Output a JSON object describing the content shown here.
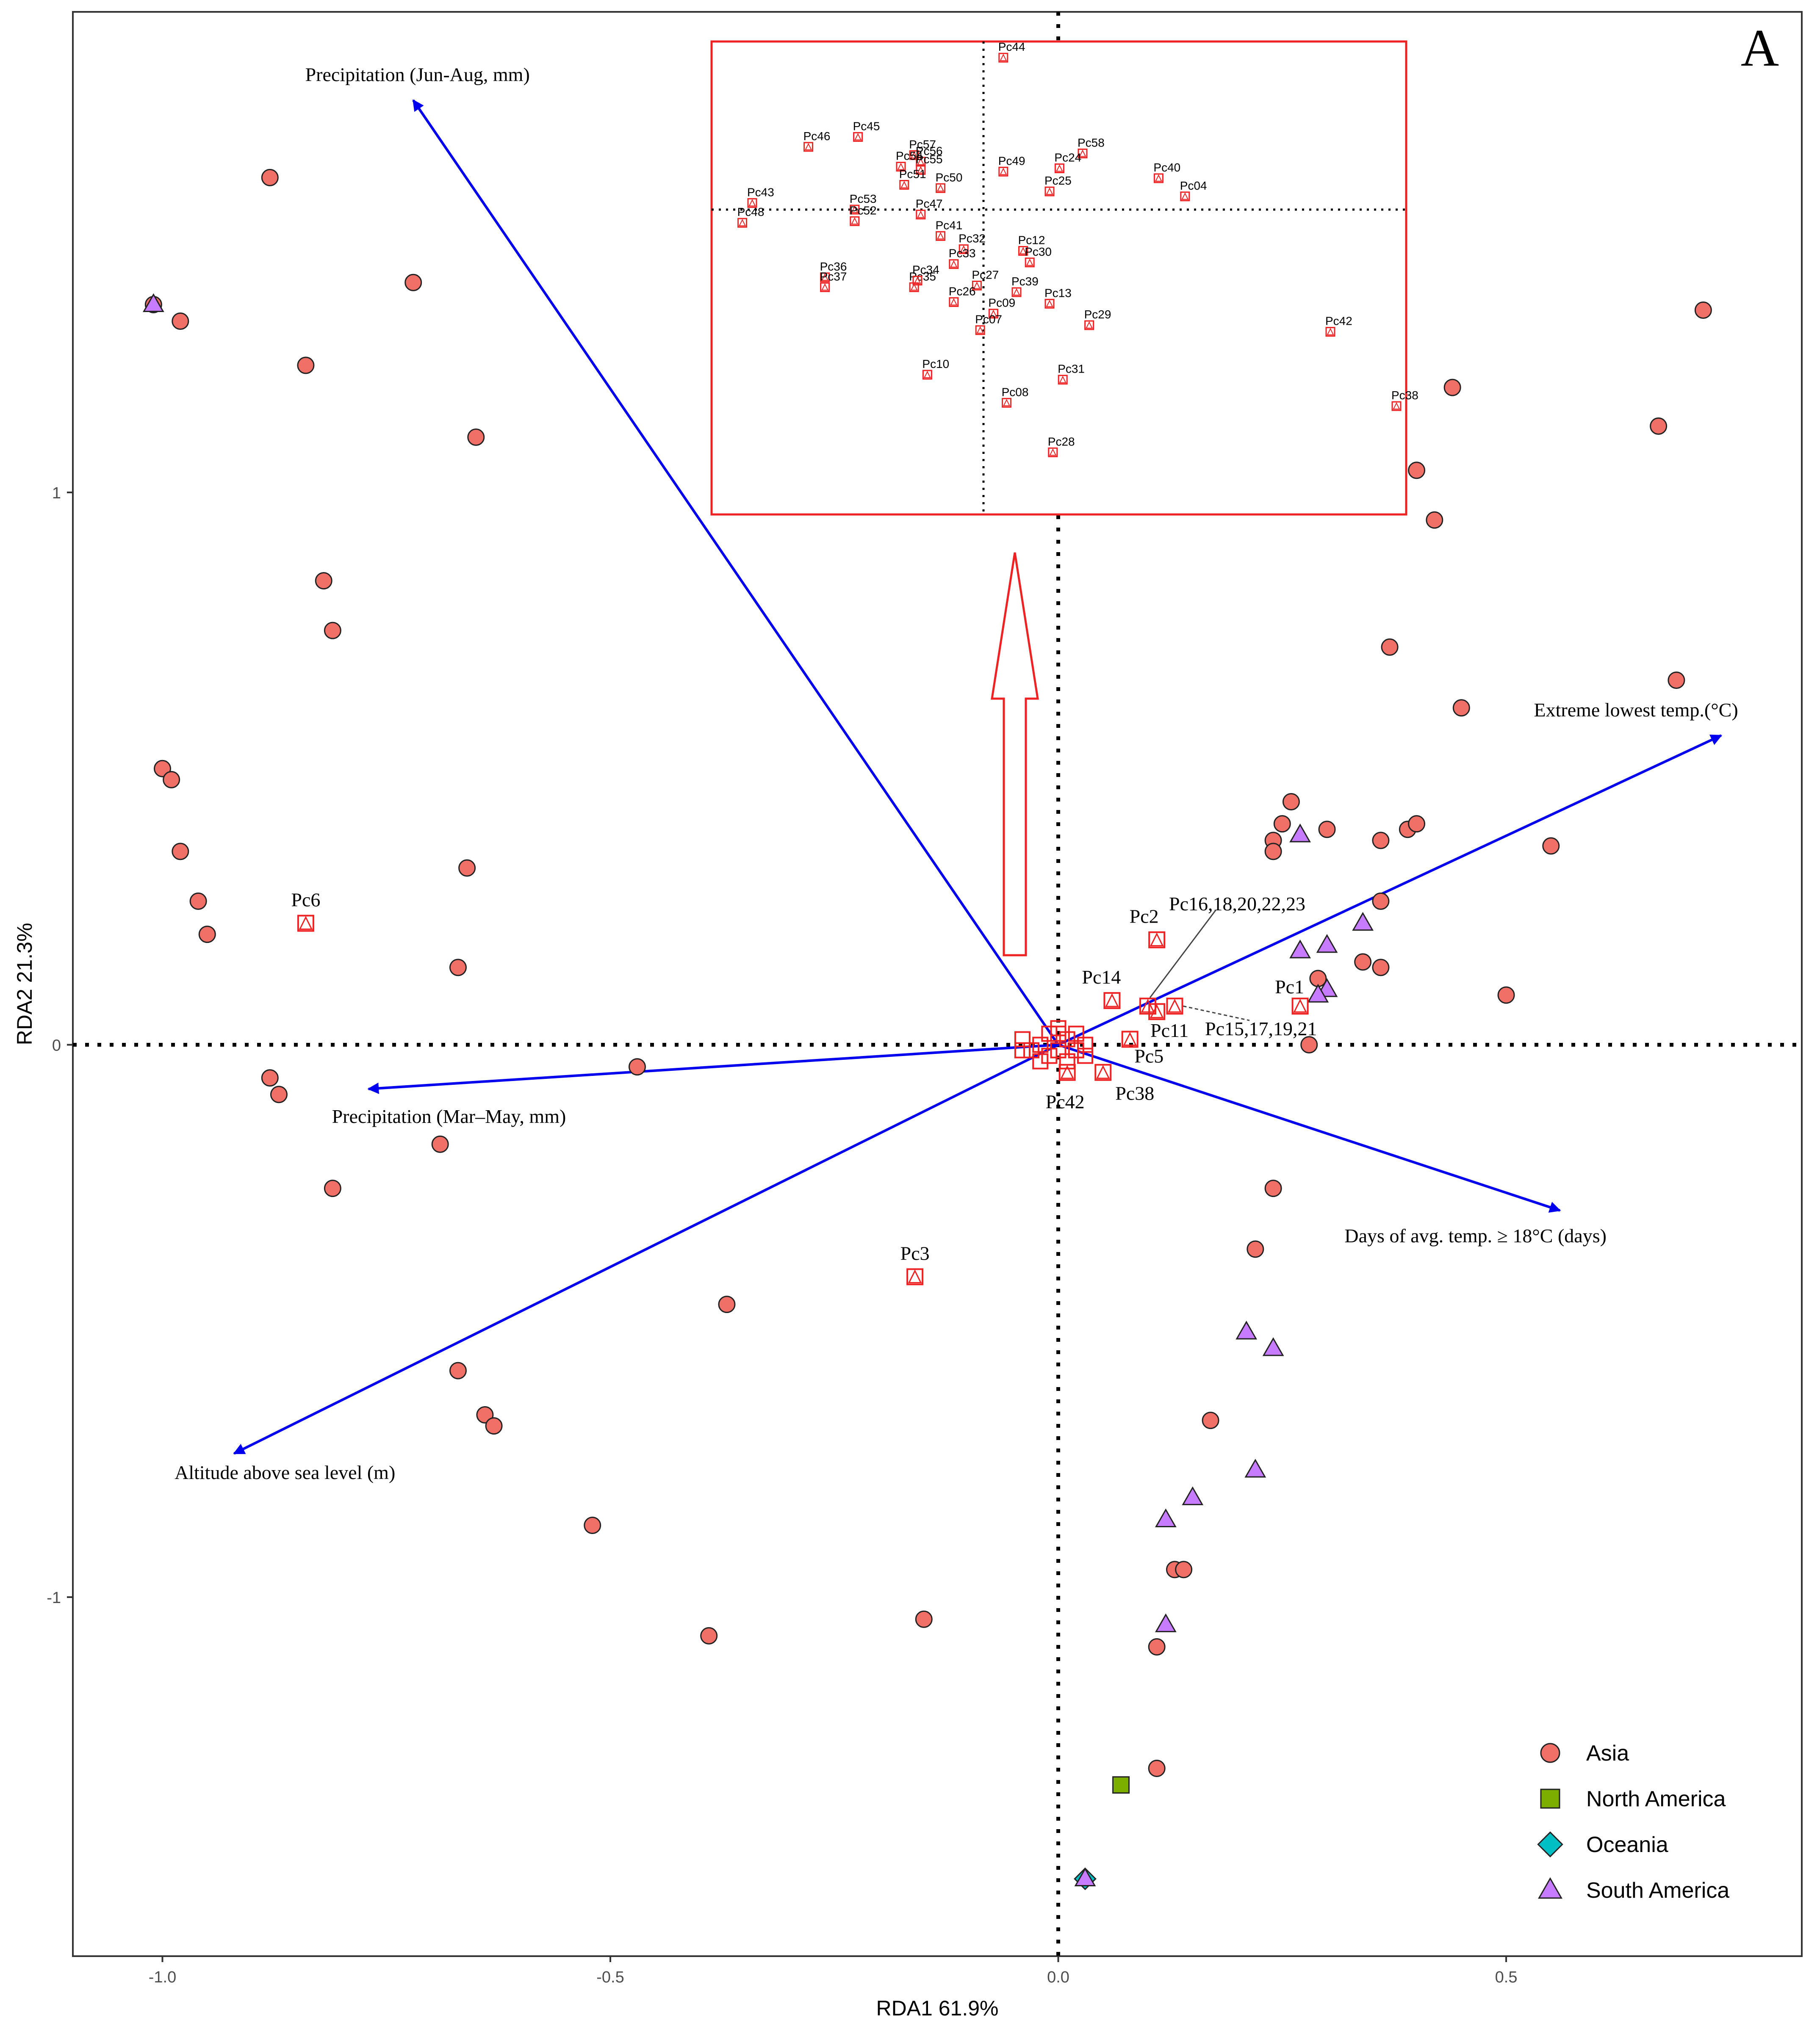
{
  "chart_data": {
    "type": "scatter",
    "panel_label": "A",
    "xlabel": "RDA1 61.9%",
    "ylabel": "RDA2 21.3%",
    "xlim": [
      -1.1,
      0.83
    ],
    "ylim": [
      -1.65,
      1.87
    ],
    "xticks": [
      {
        "value": -1.0,
        "label": "-1.0"
      },
      {
        "value": -0.5,
        "label": "-0.5"
      },
      {
        "value": 0.0,
        "label": "0.0"
      },
      {
        "value": 0.5,
        "label": "0.5"
      }
    ],
    "yticks": [
      {
        "value": 1,
        "label": "1"
      },
      {
        "value": 0,
        "label": "0"
      },
      {
        "value": -1,
        "label": "-1"
      }
    ],
    "reference_lines": {
      "x": 0,
      "y": 0
    },
    "arrow_color": "#0000ee",
    "site_color": "#f07067",
    "legend": {
      "position": "bottom-right",
      "entries": [
        {
          "label": "Asia",
          "shape": "circle",
          "color": "#f07067"
        },
        {
          "label": "North America",
          "shape": "square",
          "color": "#7cae00"
        },
        {
          "label": "Oceania",
          "shape": "diamond",
          "color": "#00bfc4"
        },
        {
          "label": "South America",
          "shape": "triangle",
          "color": "#c77cff"
        }
      ]
    },
    "arrows": [
      {
        "label": "Precipitation (Jun-Aug, mm)",
        "x": -0.72,
        "y": 1.71
      },
      {
        "label": "Extreme lowest temp.(°C)",
        "x": 0.74,
        "y": 0.56
      },
      {
        "label": "Days of avg. temp. ≥ 18°C (days)",
        "x": 0.56,
        "y": -0.3
      },
      {
        "label": "Precipitation (Mar–May, mm)",
        "x": -0.77,
        "y": -0.08
      },
      {
        "label": "Altitude above sea level (m)",
        "x": -0.92,
        "y": -0.74
      }
    ],
    "sites": [
      {
        "region": "Asia",
        "x": -1.01,
        "y": 1.34
      },
      {
        "region": "Asia",
        "x": -0.98,
        "y": 1.31
      },
      {
        "region": "Asia",
        "x": -0.88,
        "y": 1.57
      },
      {
        "region": "Asia",
        "x": -0.72,
        "y": 1.38
      },
      {
        "region": "Asia",
        "x": -0.84,
        "y": 1.23
      },
      {
        "region": "Asia",
        "x": -0.65,
        "y": 1.1
      },
      {
        "region": "Asia",
        "x": -0.82,
        "y": 0.84
      },
      {
        "region": "Asia",
        "x": -0.81,
        "y": 0.75
      },
      {
        "region": "Asia",
        "x": -1.0,
        "y": 0.5
      },
      {
        "region": "Asia",
        "x": -0.99,
        "y": 0.48
      },
      {
        "region": "Asia",
        "x": -0.98,
        "y": 0.35
      },
      {
        "region": "Asia",
        "x": -0.96,
        "y": 0.26
      },
      {
        "region": "Asia",
        "x": -0.95,
        "y": 0.2
      },
      {
        "region": "Asia",
        "x": -0.66,
        "y": 0.32
      },
      {
        "region": "Asia",
        "x": -0.67,
        "y": 0.14
      },
      {
        "region": "Asia",
        "x": -0.88,
        "y": -0.06
      },
      {
        "region": "Asia",
        "x": -0.87,
        "y": -0.09
      },
      {
        "region": "Asia",
        "x": -0.47,
        "y": -0.04
      },
      {
        "region": "Asia",
        "x": -0.69,
        "y": -0.18
      },
      {
        "region": "Asia",
        "x": -0.81,
        "y": -0.26
      },
      {
        "region": "Asia",
        "x": -0.37,
        "y": -0.47
      },
      {
        "region": "Asia",
        "x": -0.67,
        "y": -0.59
      },
      {
        "region": "Asia",
        "x": -0.64,
        "y": -0.67
      },
      {
        "region": "Asia",
        "x": -0.63,
        "y": -0.69
      },
      {
        "region": "Asia",
        "x": -0.52,
        "y": -0.87
      },
      {
        "region": "Asia",
        "x": -0.39,
        "y": -1.07
      },
      {
        "region": "Asia",
        "x": -0.15,
        "y": -1.04
      },
      {
        "region": "Asia",
        "x": 0.72,
        "y": 1.33
      },
      {
        "region": "Asia",
        "x": 0.44,
        "y": 1.19
      },
      {
        "region": "Asia",
        "x": 0.67,
        "y": 1.12
      },
      {
        "region": "Asia",
        "x": 0.4,
        "y": 1.04
      },
      {
        "region": "Asia",
        "x": 0.42,
        "y": 0.95
      },
      {
        "region": "Asia",
        "x": 0.37,
        "y": 0.72
      },
      {
        "region": "Asia",
        "x": 0.69,
        "y": 0.66
      },
      {
        "region": "Asia",
        "x": 0.45,
        "y": 0.61
      },
      {
        "region": "Asia",
        "x": 0.26,
        "y": 0.44
      },
      {
        "region": "Asia",
        "x": 0.25,
        "y": 0.4
      },
      {
        "region": "Asia",
        "x": 0.3,
        "y": 0.39
      },
      {
        "region": "Asia",
        "x": 0.39,
        "y": 0.39
      },
      {
        "region": "Asia",
        "x": 0.4,
        "y": 0.4
      },
      {
        "region": "Asia",
        "x": 0.36,
        "y": 0.37
      },
      {
        "region": "Asia",
        "x": 0.24,
        "y": 0.37
      },
      {
        "region": "Asia",
        "x": 0.24,
        "y": 0.35
      },
      {
        "region": "Asia",
        "x": 0.55,
        "y": 0.36
      },
      {
        "region": "Asia",
        "x": 0.36,
        "y": 0.26
      },
      {
        "region": "Asia",
        "x": 0.34,
        "y": 0.15
      },
      {
        "region": "Asia",
        "x": 0.36,
        "y": 0.14
      },
      {
        "region": "Asia",
        "x": 0.29,
        "y": 0.12
      },
      {
        "region": "Asia",
        "x": 0.5,
        "y": 0.09
      },
      {
        "region": "Asia",
        "x": 0.28,
        "y": 0.0
      },
      {
        "region": "Asia",
        "x": 0.24,
        "y": -0.26
      },
      {
        "region": "Asia",
        "x": 0.22,
        "y": -0.37
      },
      {
        "region": "Asia",
        "x": 0.17,
        "y": -0.68
      },
      {
        "region": "Asia",
        "x": 0.13,
        "y": -0.95
      },
      {
        "region": "Asia",
        "x": 0.14,
        "y": -0.95
      },
      {
        "region": "Asia",
        "x": 0.11,
        "y": -1.09
      },
      {
        "region": "Asia",
        "x": 0.11,
        "y": -1.31
      },
      {
        "region": "North America",
        "x": 0.07,
        "y": -1.34
      },
      {
        "region": "Oceania",
        "x": 0.03,
        "y": -1.51
      },
      {
        "region": "South America",
        "x": -1.01,
        "y": 1.34
      },
      {
        "region": "South America",
        "x": 0.27,
        "y": 0.38
      },
      {
        "region": "South America",
        "x": 0.34,
        "y": 0.22
      },
      {
        "region": "South America",
        "x": 0.3,
        "y": 0.18
      },
      {
        "region": "South America",
        "x": 0.27,
        "y": 0.17
      },
      {
        "region": "South America",
        "x": 0.3,
        "y": 0.1
      },
      {
        "region": "South America",
        "x": 0.29,
        "y": 0.09
      },
      {
        "region": "South America",
        "x": 0.21,
        "y": -0.52
      },
      {
        "region": "South America",
        "x": 0.24,
        "y": -0.55
      },
      {
        "region": "South America",
        "x": 0.22,
        "y": -0.77
      },
      {
        "region": "South America",
        "x": 0.15,
        "y": -0.82
      },
      {
        "region": "South America",
        "x": 0.12,
        "y": -0.86
      },
      {
        "region": "South America",
        "x": 0.12,
        "y": -1.05
      },
      {
        "region": "South America",
        "x": 0.03,
        "y": -1.51
      }
    ],
    "species": [
      {
        "label": "Pc6",
        "x": -0.84,
        "y": 0.22
      },
      {
        "label": "Pc3",
        "x": -0.16,
        "y": -0.42
      },
      {
        "label": "Pc2",
        "x": 0.11,
        "y": 0.19
      },
      {
        "label": "Pc14",
        "x": 0.06,
        "y": 0.08
      },
      {
        "label": "Pc1",
        "x": 0.27,
        "y": 0.07
      },
      {
        "label": "Pc11",
        "x": 0.11,
        "y": 0.06
      },
      {
        "label": "Pc5",
        "x": 0.08,
        "y": 0.01
      },
      {
        "label": "Pc38",
        "x": 0.05,
        "y": -0.05
      },
      {
        "label": "Pc42",
        "x": 0.01,
        "y": -0.05
      }
    ],
    "group_labels": [
      {
        "label": "Pc16,18,20,22,23",
        "x": 0.1,
        "y": 0.07
      },
      {
        "label": "Pc15,17,19,21",
        "x": 0.13,
        "y": 0.07
      }
    ],
    "inset": {
      "x_ref": -0.1,
      "y_ref": 0.0,
      "points": [
        {
          "label": "Pc44",
          "dx": 0.06,
          "dy": 0.92
        },
        {
          "label": "Pc46",
          "dx": -0.53,
          "dy": 0.38
        },
        {
          "label": "Pc45",
          "dx": -0.38,
          "dy": 0.44
        },
        {
          "label": "Pc57",
          "dx": -0.21,
          "dy": 0.33
        },
        {
          "label": "Pc56",
          "dx": -0.19,
          "dy": 0.29
        },
        {
          "label": "Pc54",
          "dx": -0.25,
          "dy": 0.26
        },
        {
          "label": "Pc55",
          "dx": -0.19,
          "dy": 0.24
        },
        {
          "label": "Pc58",
          "dx": 0.3,
          "dy": 0.34
        },
        {
          "label": "Pc24",
          "dx": 0.23,
          "dy": 0.25
        },
        {
          "label": "Pc49",
          "dx": 0.06,
          "dy": 0.23
        },
        {
          "label": "Pc40",
          "dx": 0.53,
          "dy": 0.19
        },
        {
          "label": "Pc51",
          "dx": -0.24,
          "dy": 0.15
        },
        {
          "label": "Pc50",
          "dx": -0.13,
          "dy": 0.13
        },
        {
          "label": "Pc25",
          "dx": 0.2,
          "dy": 0.11
        },
        {
          "label": "Pc04",
          "dx": 0.61,
          "dy": 0.08
        },
        {
          "label": "Pc43",
          "dx": -0.7,
          "dy": 0.04
        },
        {
          "label": "Pc53",
          "dx": -0.39,
          "dy": 0.0
        },
        {
          "label": "Pc48",
          "dx": -0.73,
          "dy": -0.08
        },
        {
          "label": "Pc52",
          "dx": -0.39,
          "dy": -0.07
        },
        {
          "label": "Pc47",
          "dx": -0.19,
          "dy": -0.03
        },
        {
          "label": "Pc41",
          "dx": -0.13,
          "dy": -0.16
        },
        {
          "label": "Pc32",
          "dx": -0.06,
          "dy": -0.24
        },
        {
          "label": "Pc12",
          "dx": 0.12,
          "dy": -0.25
        },
        {
          "label": "Pc33",
          "dx": -0.09,
          "dy": -0.33
        },
        {
          "label": "Pc30",
          "dx": 0.14,
          "dy": -0.32
        },
        {
          "label": "Pc36",
          "dx": -0.48,
          "dy": -0.41
        },
        {
          "label": "Pc37",
          "dx": -0.48,
          "dy": -0.47
        },
        {
          "label": "Pc35",
          "dx": -0.21,
          "dy": -0.47
        },
        {
          "label": "Pc34",
          "dx": -0.2,
          "dy": -0.43
        },
        {
          "label": "Pc27",
          "dx": -0.02,
          "dy": -0.46
        },
        {
          "label": "Pc39",
          "dx": 0.1,
          "dy": -0.5
        },
        {
          "label": "Pc26",
          "dx": -0.09,
          "dy": -0.56
        },
        {
          "label": "Pc09",
          "dx": 0.03,
          "dy": -0.63
        },
        {
          "label": "Pc13",
          "dx": 0.2,
          "dy": -0.57
        },
        {
          "label": "Pc07",
          "dx": -0.01,
          "dy": -0.73
        },
        {
          "label": "Pc29",
          "dx": 0.32,
          "dy": -0.7
        },
        {
          "label": "Pc42",
          "dx": 1.05,
          "dy": -0.74
        },
        {
          "label": "Pc10",
          "dx": -0.17,
          "dy": -1.0
        },
        {
          "label": "Pc31",
          "dx": 0.24,
          "dy": -1.03
        },
        {
          "label": "Pc08",
          "dx": 0.07,
          "dy": -1.17
        },
        {
          "label": "Pc38",
          "dx": 1.25,
          "dy": -1.19
        },
        {
          "label": "Pc28",
          "dx": 0.21,
          "dy": -1.47
        }
      ]
    }
  }
}
